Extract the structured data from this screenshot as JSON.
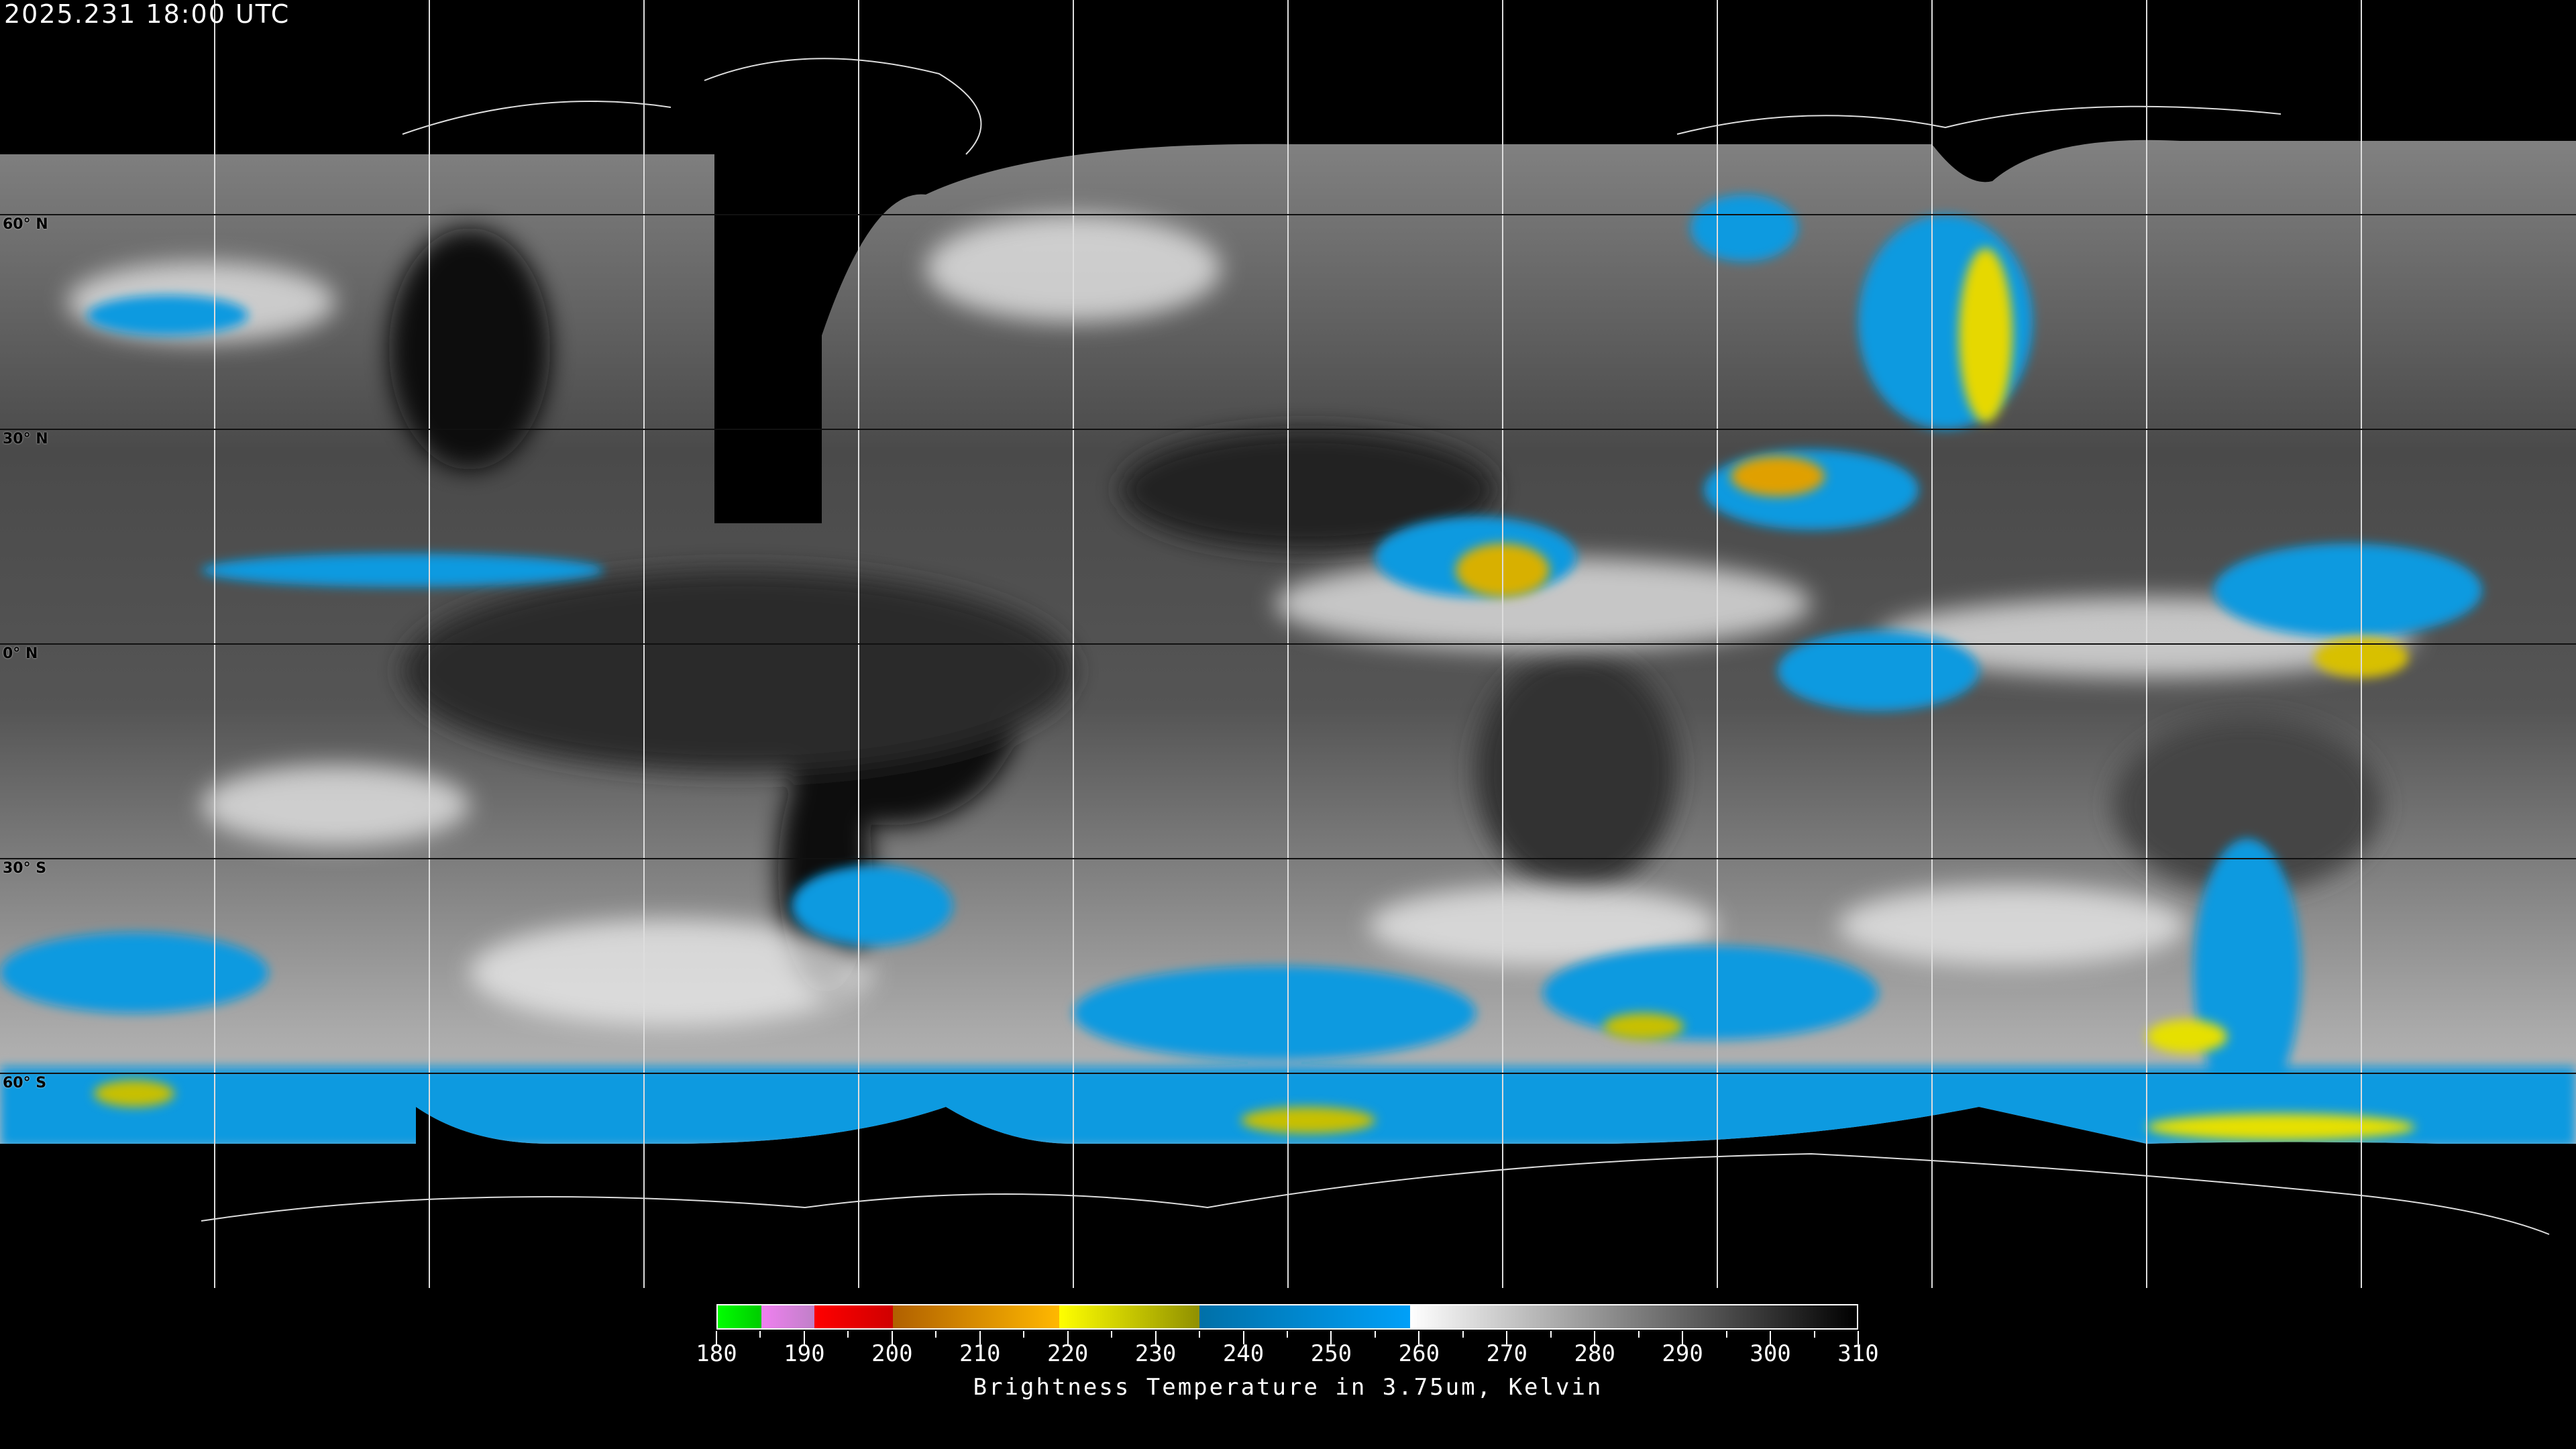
{
  "header": {
    "timestamp": "2025.231 18:00 UTC"
  },
  "map": {
    "projection": "equirectangular",
    "latitude_labels": [
      "60° N",
      "30° N",
      "0° N",
      "30° S",
      "60° S"
    ],
    "grid_spacing_degrees": 30
  },
  "colorbar": {
    "min": 180,
    "max": 310,
    "tick_labels": [
      "180",
      "190",
      "200",
      "210",
      "220",
      "230",
      "240",
      "250",
      "260",
      "270",
      "280",
      "290",
      "300",
      "310"
    ],
    "segments": [
      {
        "from": 180,
        "to": 185,
        "colors": [
          "#00ff00",
          "#00cc00"
        ]
      },
      {
        "from": 185,
        "to": 191,
        "colors": [
          "#f080f0",
          "#c080c8"
        ]
      },
      {
        "from": 191,
        "to": 200,
        "colors": [
          "#ff0000",
          "#d00000"
        ]
      },
      {
        "from": 200,
        "to": 219,
        "colors": [
          "#b06000",
          "#ffb800"
        ]
      },
      {
        "from": 219,
        "to": 235,
        "colors": [
          "#ffff00",
          "#909000"
        ]
      },
      {
        "from": 235,
        "to": 259,
        "colors": [
          "#0070a8",
          "#00a0f8"
        ]
      },
      {
        "from": 259,
        "to": 310,
        "colors": [
          "#ffffff",
          "#000000"
        ]
      }
    ],
    "caption": "Brightness Temperature in 3.75um, Kelvin"
  }
}
